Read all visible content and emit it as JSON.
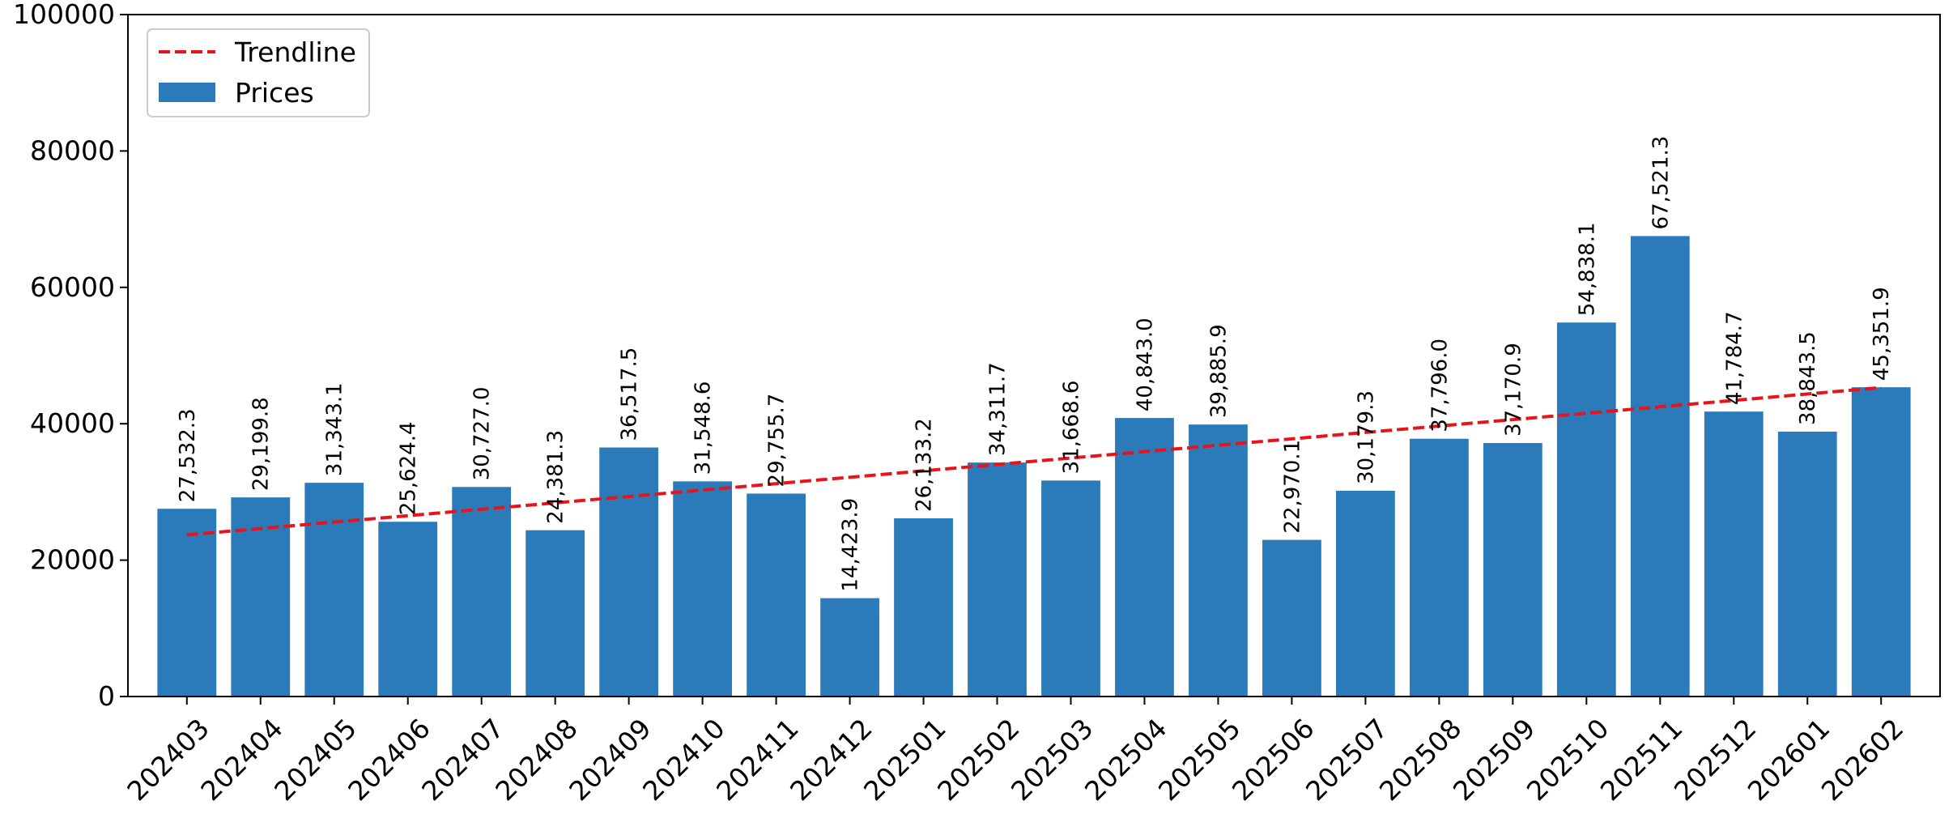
{
  "chart_data": {
    "type": "bar",
    "categories": [
      "202403",
      "202404",
      "202405",
      "202406",
      "202407",
      "202408",
      "202409",
      "202410",
      "202411",
      "202412",
      "202501",
      "202502",
      "202503",
      "202504",
      "202505",
      "202506",
      "202507",
      "202508",
      "202509",
      "202510",
      "202511",
      "202512",
      "202601",
      "202602"
    ],
    "series": [
      {
        "name": "Prices",
        "values": [
          27532.3,
          29199.8,
          31343.1,
          25624.4,
          30727.0,
          24381.3,
          36517.5,
          31548.6,
          29755.7,
          14423.9,
          26133.2,
          34311.7,
          31668.6,
          40843.0,
          39885.9,
          22970.1,
          30179.3,
          37796.0,
          37170.9,
          54838.1,
          67521.3,
          41784.7,
          38843.5,
          45351.9
        ],
        "value_labels": [
          "27,532.3",
          "29,199.8",
          "31,343.1",
          "25,624.4",
          "30,727.0",
          "24,381.3",
          "36,517.5",
          "31,548.6",
          "29,755.7",
          "14,423.9",
          "26,133.2",
          "34,311.7",
          "31,668.6",
          "40,843.0",
          "39,885.9",
          "22,970.1",
          "30,179.3",
          "37,796.0",
          "37,170.9",
          "54,838.1",
          "67,521.3",
          "41,784.7",
          "38,843.5",
          "45,351.9"
        ],
        "color": "#2b7bba"
      }
    ],
    "trendline": {
      "name": "Trendline",
      "start": 23700,
      "end": 45300,
      "color": "#e8141b",
      "style": "dashed"
    },
    "ylim": [
      0,
      100000
    ],
    "yticks": [
      0,
      20000,
      40000,
      60000,
      80000,
      100000
    ],
    "ytick_labels": [
      "0",
      "20000",
      "40000",
      "60000",
      "80000",
      "100000"
    ],
    "xlabel": "",
    "ylabel": "",
    "title": "",
    "grid": false,
    "legend": {
      "placement": "top-left",
      "entries": [
        {
          "label": "Trendline",
          "kind": "line",
          "color": "#e8141b"
        },
        {
          "label": "Prices",
          "kind": "patch",
          "color": "#2b7bba"
        }
      ]
    }
  }
}
